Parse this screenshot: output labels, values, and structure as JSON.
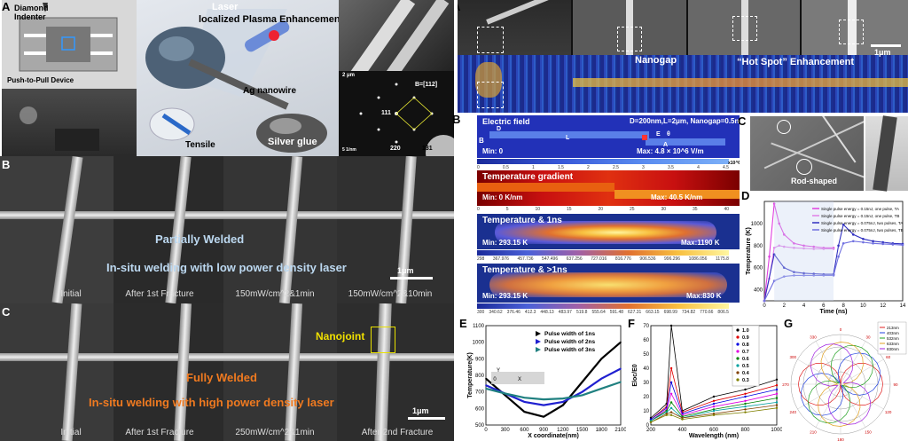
{
  "panel_a_left": {
    "label": "A",
    "diamond": "Diamond\nIndenter",
    "push_pull": "Push-to-Pull Device",
    "laser": "Laser",
    "plasma": "localized Plasma Enhancement",
    "ag_nanowire": "Ag nanowire",
    "silver_glue": "Silver glue",
    "tensile": "Tensile",
    "diff_2um": "2 μm",
    "diff_zone": "B=[112]",
    "diff_111": "111",
    "diff_220": "220",
    "diff_131": "131",
    "diff_scale": "5 1/nm"
  },
  "panel_b_left": {
    "label": "B",
    "partial": "Partially Welded",
    "insitu": "In-situ welding with low power density laser",
    "scale": "1μm",
    "captions": [
      "Initial",
      "After 1st Fracture",
      "150mW/cm^2&1min",
      "150mW/cm^2&10min"
    ]
  },
  "panel_c_left": {
    "label": "C",
    "nanojoint": "Nanojoint",
    "fully": "Fully Welded",
    "insitu": "In-situ welding with high power density laser",
    "scale": "1μm",
    "captions": [
      "Initial",
      "After 1st Fracture",
      "250mW/cm^2&1min",
      "After 2nd Fracture"
    ]
  },
  "panel_a_right": {
    "label": "A",
    "nanogap": "Nanogap",
    "hotspot": "“Hot Spot” Enhancement",
    "scale": "1μm"
  },
  "panel_b_right": {
    "label": "B",
    "ef_title": "Electric field",
    "ef_params": "D=200nm,L=2μm, Nanogap=0.5nm",
    "ef_min": "Min: 0",
    "ef_max": "Max: 4.8 × 10^6 V/m",
    "ef_axis": [
      "0",
      "0.5",
      "1",
      "1.5",
      "2",
      "2.5",
      "3",
      "3.5",
      "4",
      "4.5"
    ],
    "ef_mult": "x10^6",
    "lbl_B": "B",
    "lbl_D": "D",
    "lbl_L": "L",
    "lbl_E": "E",
    "lbl_A": "A",
    "lbl_theta": "θ",
    "tg_title": "Temperature gradient",
    "tg_min": "Min: 0 K/nm",
    "tg_max": "Max: 40.5 K/nm",
    "tg_axis": [
      "0",
      "5",
      "10",
      "15",
      "20",
      "25",
      "30",
      "35",
      "40"
    ],
    "t1_title": "Temperature & 1ns",
    "t1_min": "Min: 293.15 K",
    "t1_max": "Max:1190 K",
    "t1_axis": [
      "298",
      "367.976",
      "457.736",
      "547.496",
      "637.256",
      "727.016",
      "816.776",
      "906.536",
      "996.296",
      "1086.056",
      "1175.8"
    ],
    "t2_title": "Temperature & >1ns",
    "t2_min": "Min: 293.15 K",
    "t2_max": "Max:830 K",
    "t2_axis": [
      "300",
      "340.62",
      "376.46",
      "412.3",
      "448.13",
      "483.97",
      "519.8",
      "555.64",
      "591.48",
      "627.31",
      "663.15",
      "698.99",
      "734.82",
      "770.66",
      "806.5"
    ]
  },
  "panel_c_right": {
    "label": "C",
    "rod": "Rod-shaped"
  },
  "panel_d": {
    "label": "D",
    "xlabel": "Time  (ns)",
    "ylabel": "Temperature (K)",
    "xticks": [
      "0",
      "2",
      "4",
      "6",
      "8",
      "10",
      "12",
      "14"
    ],
    "yticks": [
      "400",
      "600",
      "800",
      "1000"
    ],
    "legend": [
      "Single pulse energy = 0.15nJ, one pulse, TA",
      "Single pulse energy = 0.15nJ, one pulse, TB",
      "Single pulse energy = 0.075nJ, two pulses, TA",
      "Single pulse energy = 0.075nJ, two pulses, TB"
    ],
    "colors": [
      "#e040e0",
      "#e080e8",
      "#3030c0",
      "#7070e0"
    ]
  },
  "panel_e": {
    "label": "E",
    "xlabel": "X coordinate(nm)",
    "ylabel": "Temperature(K)",
    "xticks": [
      "0",
      "300",
      "600",
      "900",
      "1200",
      "1500",
      "1800",
      "2100"
    ],
    "yticks": [
      "500",
      "600",
      "700",
      "800",
      "900",
      "1000",
      "1100"
    ],
    "legend": [
      "Pulse width of 1ns",
      "Pulse width of 2ns",
      "Pulse width of 3ns"
    ],
    "colors": [
      "#000000",
      "#2020d0",
      "#208080"
    ],
    "inset_x": "X",
    "inset_y": "Y",
    "inset_o": "0"
  },
  "panel_f": {
    "label": "F",
    "xlabel": "Wavelength  (nm)",
    "ylabel": "Eloc/E0",
    "xticks": [
      "200",
      "400",
      "600",
      "800",
      "1000"
    ],
    "yticks": [
      "0",
      "10",
      "20",
      "30",
      "40",
      "50",
      "60",
      "70"
    ],
    "legend": [
      "1.0",
      "0.9",
      "0.8",
      "0.7",
      "0.6",
      "0.5",
      "0.4",
      "0.3"
    ],
    "colors": [
      "#000000",
      "#e00000",
      "#0000e0",
      "#e000e0",
      "#008000",
      "#00a0a0",
      "#804000",
      "#808000"
    ]
  },
  "panel_g": {
    "label": "G",
    "angles": [
      "0",
      "30",
      "60",
      "90",
      "120",
      "150",
      "180",
      "210",
      "240",
      "270",
      "300",
      "330"
    ],
    "legend": [
      "213nm",
      "403nm",
      "532nm",
      "633nm",
      "830nm"
    ]
  },
  "chart_data": [
    {
      "type": "line",
      "title": "",
      "xlabel": "Time  (ns)",
      "ylabel": "Temperature (K)",
      "xlim": [
        0,
        14
      ],
      "ylim": [
        300,
        1200
      ],
      "series": [
        {
          "name": "Single pulse energy = 0.15nJ, one pulse, TA",
          "x": [
            0,
            0.5,
            1,
            1.5,
            2,
            3,
            4,
            5,
            6,
            7
          ],
          "values": [
            300,
            700,
            1180,
            1000,
            900,
            820,
            800,
            790,
            780,
            780
          ]
        },
        {
          "name": "Single pulse energy = 0.15nJ, one pulse, TB",
          "x": [
            0,
            0.5,
            1,
            1.5,
            2,
            3,
            4,
            5,
            6,
            7
          ],
          "values": [
            300,
            500,
            780,
            800,
            790,
            780,
            775,
            770,
            770,
            770
          ]
        },
        {
          "name": "Single pulse energy = 0.075nJ, two pulses, TA",
          "x": [
            0,
            1,
            2,
            3,
            4,
            5,
            6,
            7,
            7.5,
            8,
            9,
            10,
            11,
            12,
            13,
            14
          ],
          "values": [
            300,
            720,
            600,
            560,
            550,
            545,
            540,
            540,
            800,
            990,
            900,
            860,
            840,
            830,
            820,
            815
          ]
        },
        {
          "name": "Single pulse energy = 0.075nJ, two pulses, TB",
          "x": [
            0,
            1,
            2,
            3,
            4,
            5,
            6,
            7,
            7.5,
            8,
            9,
            10,
            11,
            12,
            13,
            14
          ],
          "values": [
            300,
            480,
            520,
            530,
            530,
            530,
            530,
            530,
            700,
            820,
            840,
            830,
            820,
            815,
            810,
            805
          ]
        }
      ]
    },
    {
      "type": "line",
      "title": "",
      "xlabel": "X coordinate(nm)",
      "ylabel": "Temperature(K)",
      "xlim": [
        0,
        2100
      ],
      "ylim": [
        500,
        1100
      ],
      "series": [
        {
          "name": "Pulse width of 1ns",
          "x": [
            0,
            300,
            600,
            900,
            1200,
            1500,
            1800,
            2100
          ],
          "values": [
            780,
            680,
            580,
            550,
            620,
            760,
            900,
            1000
          ]
        },
        {
          "name": "Pulse width of 2ns",
          "x": [
            0,
            300,
            600,
            900,
            1200,
            1500,
            1800,
            2100
          ],
          "values": [
            740,
            690,
            640,
            620,
            640,
            700,
            780,
            840
          ]
        },
        {
          "name": "Pulse width of 3ns",
          "x": [
            0,
            300,
            600,
            900,
            1200,
            1500,
            1800,
            2100
          ],
          "values": [
            720,
            690,
            665,
            655,
            660,
            680,
            720,
            760
          ]
        }
      ]
    },
    {
      "type": "line",
      "title": "",
      "xlabel": "Wavelength  (nm)",
      "ylabel": "Eloc/E0",
      "xlim": [
        200,
        1000
      ],
      "ylim": [
        0,
        70
      ],
      "series": [
        {
          "name": "1.0",
          "x": [
            200,
            300,
            330,
            400,
            600,
            800,
            1000
          ],
          "values": [
            5,
            15,
            70,
            10,
            20,
            25,
            32
          ]
        },
        {
          "name": "0.9",
          "x": [
            200,
            300,
            330,
            400,
            600,
            800,
            1000
          ],
          "values": [
            4,
            13,
            40,
            9,
            17,
            22,
            28
          ]
        },
        {
          "name": "0.8",
          "x": [
            200,
            300,
            330,
            400,
            600,
            800,
            1000
          ],
          "values": [
            4,
            12,
            30,
            8,
            15,
            20,
            25
          ]
        },
        {
          "name": "0.7",
          "x": [
            200,
            300,
            330,
            400,
            600,
            800,
            1000
          ],
          "values": [
            3,
            11,
            22,
            7,
            13,
            17,
            22
          ]
        },
        {
          "name": "0.6",
          "x": [
            200,
            300,
            330,
            400,
            600,
            800,
            1000
          ],
          "values": [
            3,
            10,
            16,
            6,
            11,
            15,
            19
          ]
        },
        {
          "name": "0.5",
          "x": [
            200,
            300,
            330,
            400,
            600,
            800,
            1000
          ],
          "values": [
            3,
            9,
            12,
            5,
            10,
            13,
            16
          ]
        },
        {
          "name": "0.4",
          "x": [
            200,
            300,
            330,
            400,
            600,
            800,
            1000
          ],
          "values": [
            2,
            8,
            9,
            5,
            8,
            11,
            14
          ]
        },
        {
          "name": "0.3",
          "x": [
            200,
            300,
            330,
            400,
            600,
            800,
            1000
          ],
          "values": [
            2,
            7,
            7,
            4,
            7,
            9,
            12
          ]
        }
      ]
    }
  ]
}
